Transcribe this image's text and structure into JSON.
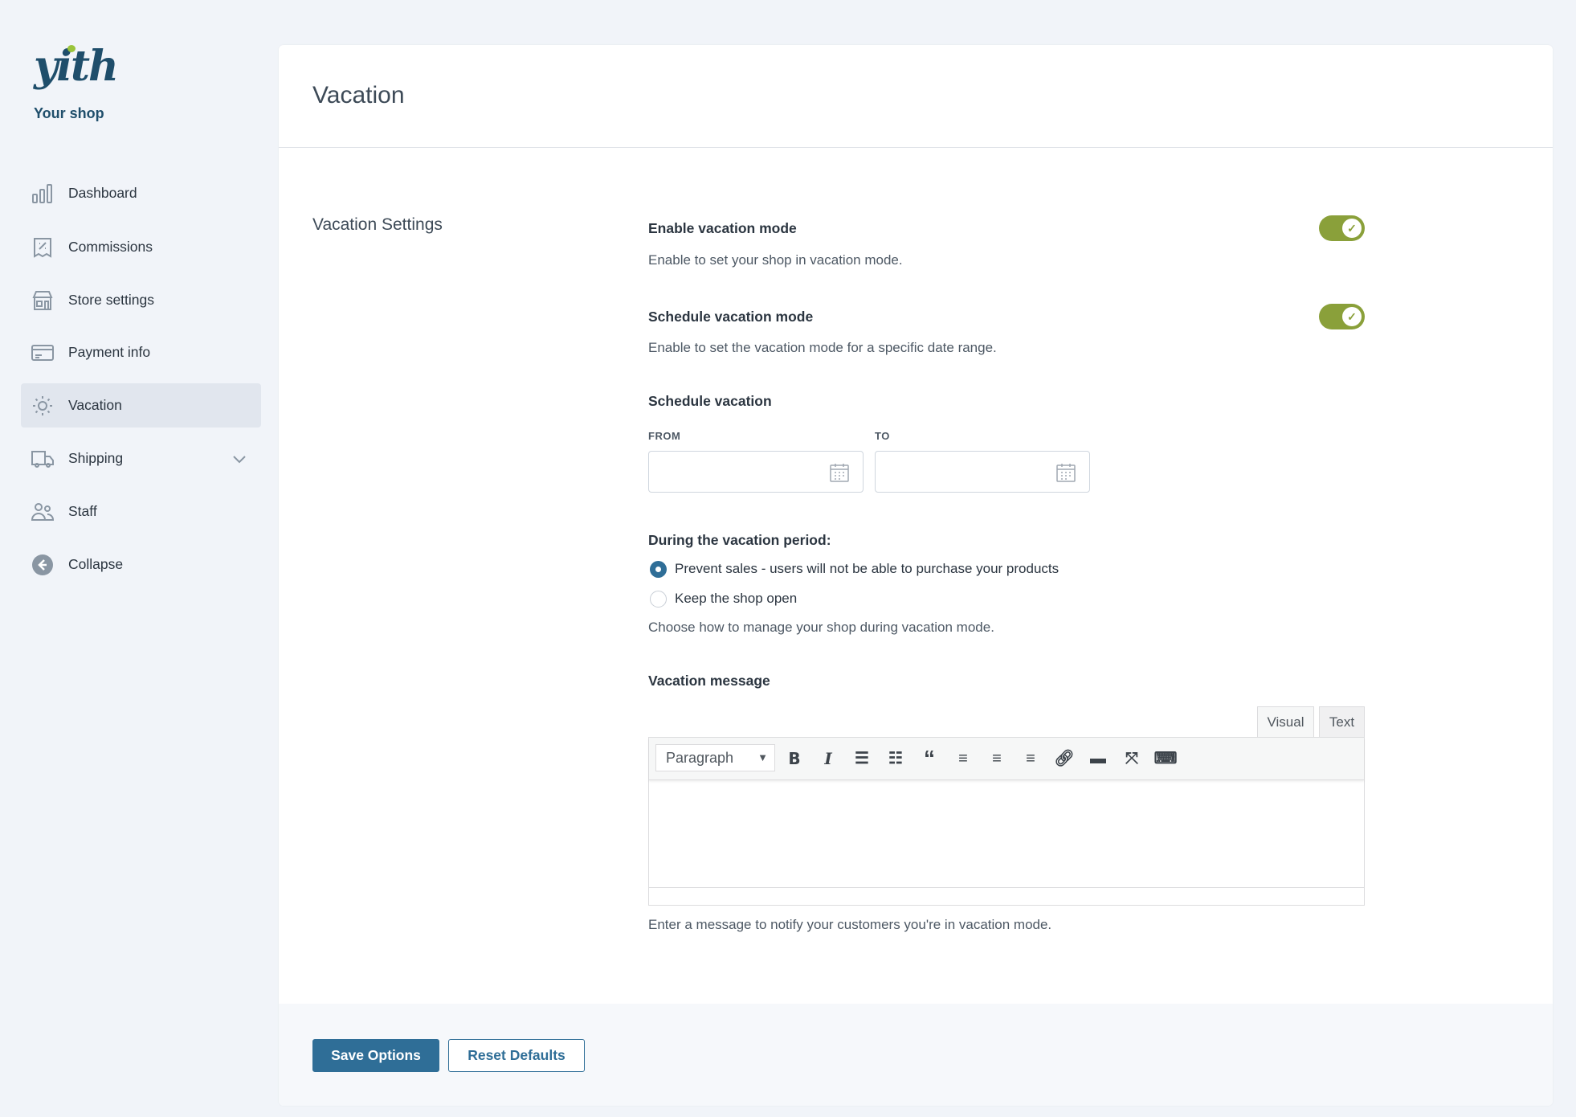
{
  "brand": {
    "logo_text": "yith",
    "shop_name": "Your shop"
  },
  "sidebar": {
    "items": [
      {
        "label": "Dashboard",
        "icon": "bar-chart-icon"
      },
      {
        "label": "Commissions",
        "icon": "receipt-percent-icon"
      },
      {
        "label": "Store settings",
        "icon": "store-icon"
      },
      {
        "label": "Payment info",
        "icon": "credit-card-icon"
      },
      {
        "label": "Vacation",
        "icon": "sun-icon",
        "active": true
      },
      {
        "label": "Shipping",
        "icon": "truck-icon",
        "expandable": true
      },
      {
        "label": "Staff",
        "icon": "users-icon"
      },
      {
        "label": "Collapse",
        "icon": "arrow-left-circle-icon"
      }
    ]
  },
  "page": {
    "title": "Vacation",
    "section_title": "Vacation Settings"
  },
  "form": {
    "enable": {
      "label": "Enable vacation mode",
      "desc": "Enable to set your shop in vacation mode.",
      "on": true
    },
    "schedule": {
      "label": "Schedule vacation mode",
      "desc": "Enable to set the vacation mode for a specific date range.",
      "on": true
    },
    "range": {
      "label": "Schedule vacation",
      "from_label": "FROM",
      "to_label": "TO",
      "from_value": "",
      "to_value": ""
    },
    "period": {
      "label": "During the vacation period:",
      "options": [
        "Prevent sales - users will not be able to purchase your products",
        "Keep the shop open"
      ],
      "selected": 0,
      "desc": "Choose how to manage your shop during vacation mode."
    },
    "message": {
      "label": "Vacation message",
      "tab_visual": "Visual",
      "tab_text": "Text",
      "format": "Paragraph",
      "desc": "Enter a message to notify your customers you're in vacation mode."
    }
  },
  "colors": {
    "accent": "#2f6e97",
    "toggle": "#8aa03a"
  },
  "footer": {
    "save": "Save Options",
    "reset": "Reset Defaults"
  }
}
